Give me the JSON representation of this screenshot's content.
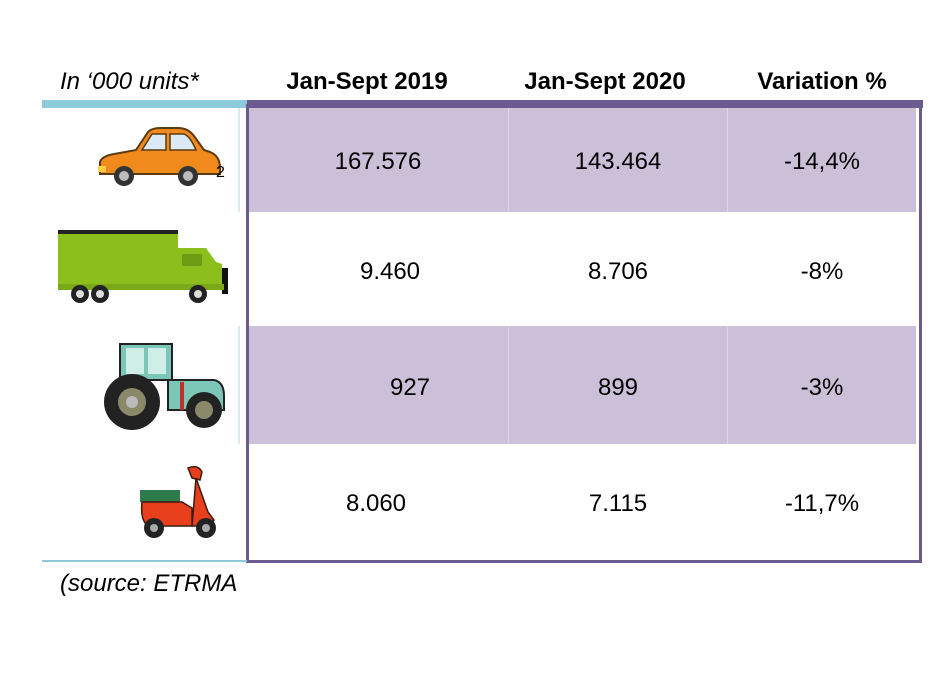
{
  "header": {
    "units": "In ‘000 units*",
    "col1": "Jan-Sept 2019",
    "col2": "Jan-Sept 2020",
    "col3": "Variation %"
  },
  "rows": [
    {
      "icon": "car-icon",
      "note": "2",
      "v2019": "167.576",
      "v2020": "143.464",
      "variation": "-14,4%"
    },
    {
      "icon": "truck-icon",
      "v2019": "9.460",
      "v2020": "8.706",
      "variation": "-8%"
    },
    {
      "icon": "tractor-icon",
      "v2019": "927",
      "v2020": "899",
      "variation": "-3%"
    },
    {
      "icon": "scooter-icon",
      "v2019": "8.060",
      "v2020": "7.115",
      "variation": "-11,7%"
    }
  ],
  "source": "(source: ETRMA",
  "colors": {
    "band": "#ccc0d8",
    "frame": "#6b5b8f",
    "rule_blue": "#8fc9dc"
  }
}
